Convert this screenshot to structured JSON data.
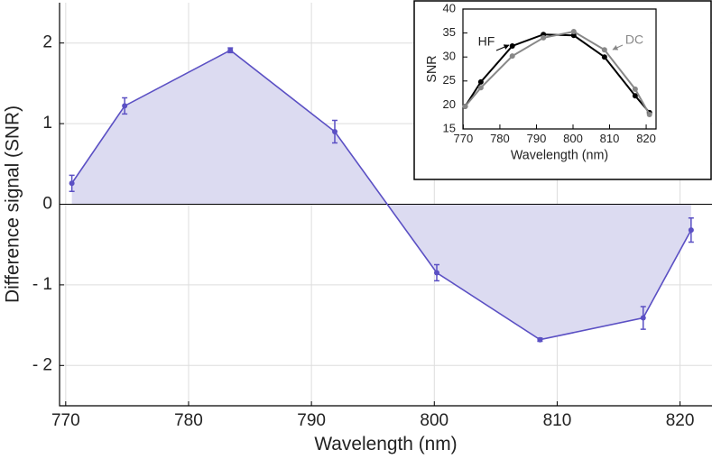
{
  "chart_data": [
    {
      "type": "line",
      "x_label": "Wavelength (nm)",
      "y_label": "Difference signal (SNR)",
      "x": [
        770.5,
        774.8,
        783.4,
        791.9,
        800.2,
        808.6,
        817.0,
        820.9
      ],
      "values": [
        0.26,
        1.22,
        1.91,
        0.9,
        -0.85,
        -1.68,
        -1.41,
        -0.32
      ],
      "errors": [
        0.1,
        0.1,
        0.03,
        0.14,
        0.1,
        0.02,
        0.14,
        0.15
      ],
      "color": "#5b50c4",
      "fill_color": "#dcdbf1",
      "xlim": [
        769.5,
        822.6
      ],
      "ylim": [
        -2.5,
        2.5
      ],
      "xticks": [
        770,
        780,
        790,
        800,
        810,
        820
      ],
      "yticks": [
        {
          "value": -2,
          "label": "- 2"
        },
        {
          "value": -1,
          "label": "- 1"
        },
        0,
        1,
        2
      ],
      "grid": true
    },
    {
      "type": "line",
      "x_label": "Wavelength (nm)",
      "y_label": "SNR",
      "x": [
        770.5,
        774.8,
        783.4,
        791.9,
        800.2,
        808.6,
        817.0,
        820.9
      ],
      "series": [
        {
          "name": "HF",
          "color": "#000000",
          "values": [
            19.7,
            24.8,
            32.3,
            34.7,
            34.5,
            30.0,
            21.9,
            18.4
          ]
        },
        {
          "name": "DC",
          "color": "#888888",
          "values": [
            19.7,
            23.6,
            30.2,
            34.0,
            35.3,
            31.5,
            23.3,
            18.0
          ]
        }
      ],
      "xlim": [
        769.9,
        822.7
      ],
      "ylim": [
        15,
        40
      ],
      "xticks": [
        770,
        780,
        790,
        800,
        810,
        820
      ],
      "yticks": [
        15,
        20,
        25,
        30,
        35,
        40
      ],
      "grid": false
    }
  ]
}
